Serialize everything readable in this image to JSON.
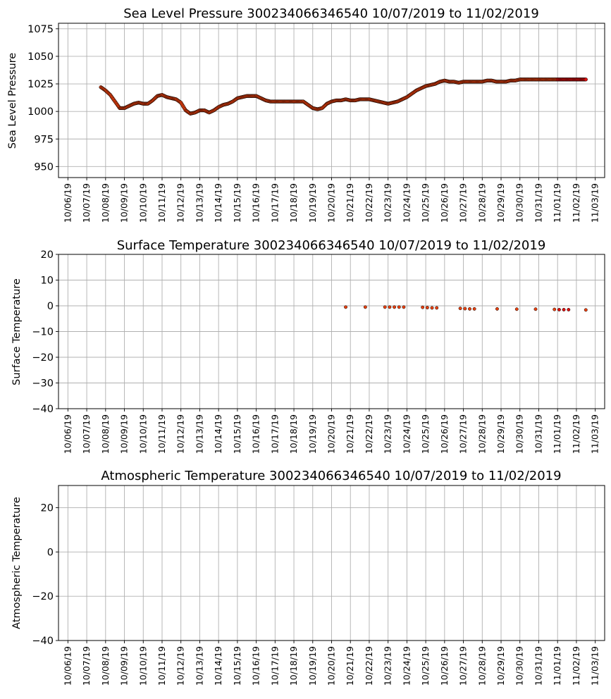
{
  "chart_data": [
    {
      "type": "scatter",
      "title": "Sea Level Pressure 300234066346540  10/07/2019 to 11/02/2019",
      "ylabel": "Sea Level Pressure",
      "xlabel": "",
      "ylim": [
        940,
        1080
      ],
      "yticks": [
        950,
        975,
        1000,
        1025,
        1050,
        1075
      ],
      "xlim": [
        "2019-10-05T12:00",
        "2019-11-03T12:00"
      ],
      "xtick_labels": [
        "10/06/19",
        "10/07/19",
        "10/08/19",
        "10/09/19",
        "10/10/19",
        "10/11/19",
        "10/12/19",
        "10/13/19",
        "10/14/19",
        "10/15/19",
        "10/16/19",
        "10/17/19",
        "10/18/19",
        "10/19/19",
        "10/20/19",
        "10/21/19",
        "10/22/19",
        "10/23/19",
        "10/24/19",
        "10/25/19",
        "10/26/19",
        "10/27/19",
        "10/28/19",
        "10/29/19",
        "10/30/19",
        "10/31/19",
        "11/01/19",
        "11/02/19",
        "11/03/19"
      ],
      "grid": true,
      "marker_color": "#e8400f",
      "marker_edge": "#000000",
      "late_color": "#e01010",
      "series": [
        {
          "x": [
            "2019-10-07T18:00",
            "2019-10-08T00:00",
            "2019-10-08T06:00",
            "2019-10-08T12:00",
            "2019-10-08T18:00",
            "2019-10-09T00:00",
            "2019-10-09T06:00",
            "2019-10-09T12:00",
            "2019-10-09T18:00",
            "2019-10-10T00:00",
            "2019-10-10T06:00",
            "2019-10-10T12:00",
            "2019-10-10T18:00",
            "2019-10-11T00:00",
            "2019-10-11T06:00",
            "2019-10-11T12:00",
            "2019-10-11T18:00",
            "2019-10-12T00:00",
            "2019-10-12T06:00",
            "2019-10-12T12:00",
            "2019-10-12T18:00",
            "2019-10-13T00:00",
            "2019-10-13T06:00",
            "2019-10-13T12:00",
            "2019-10-13T18:00",
            "2019-10-14T00:00",
            "2019-10-14T06:00",
            "2019-10-14T12:00",
            "2019-10-14T18:00",
            "2019-10-15T00:00",
            "2019-10-15T06:00",
            "2019-10-15T12:00",
            "2019-10-15T18:00",
            "2019-10-16T00:00",
            "2019-10-16T06:00",
            "2019-10-16T12:00",
            "2019-10-16T18:00",
            "2019-10-17T00:00",
            "2019-10-17T06:00",
            "2019-10-17T12:00",
            "2019-10-17T18:00",
            "2019-10-18T00:00",
            "2019-10-18T06:00",
            "2019-10-18T12:00",
            "2019-10-18T18:00",
            "2019-10-19T00:00",
            "2019-10-19T06:00",
            "2019-10-19T12:00",
            "2019-10-19T18:00",
            "2019-10-20T00:00",
            "2019-10-20T06:00",
            "2019-10-20T12:00",
            "2019-10-20T18:00",
            "2019-10-21T00:00",
            "2019-10-21T06:00",
            "2019-10-21T12:00",
            "2019-10-21T18:00",
            "2019-10-22T00:00",
            "2019-10-22T06:00",
            "2019-10-22T12:00",
            "2019-10-22T18:00",
            "2019-10-23T00:00",
            "2019-10-23T06:00",
            "2019-10-23T12:00",
            "2019-10-23T18:00",
            "2019-10-24T00:00",
            "2019-10-24T06:00",
            "2019-10-24T12:00",
            "2019-10-24T18:00",
            "2019-10-25T00:00",
            "2019-10-25T06:00",
            "2019-10-25T12:00",
            "2019-10-25T18:00",
            "2019-10-26T00:00",
            "2019-10-26T06:00",
            "2019-10-26T12:00",
            "2019-10-26T18:00",
            "2019-10-27T00:00",
            "2019-10-27T06:00",
            "2019-10-27T12:00",
            "2019-10-27T18:00",
            "2019-10-28T00:00",
            "2019-10-28T06:00",
            "2019-10-28T12:00",
            "2019-10-28T18:00",
            "2019-10-29T00:00",
            "2019-10-29T06:00",
            "2019-10-29T12:00",
            "2019-10-29T18:00",
            "2019-10-30T00:00",
            "2019-10-30T06:00",
            "2019-10-30T12:00",
            "2019-10-30T18:00",
            "2019-10-31T00:00",
            "2019-10-31T06:00",
            "2019-10-31T12:00",
            "2019-10-31T18:00",
            "2019-11-01T00:00",
            "2019-11-01T06:00",
            "2019-11-01T12:00",
            "2019-11-01T18:00",
            "2019-11-02T00:00",
            "2019-11-02T06:00",
            "2019-11-02T12:00"
          ],
          "y": [
            1022,
            1019,
            1015,
            1009,
            1003,
            1003,
            1005,
            1007,
            1008,
            1007,
            1007,
            1010,
            1014,
            1015,
            1013,
            1012,
            1011,
            1008,
            1001,
            998,
            999,
            1001,
            1001,
            999,
            1001,
            1004,
            1006,
            1007,
            1009,
            1012,
            1013,
            1014,
            1014,
            1014,
            1012,
            1010,
            1009,
            1009,
            1009,
            1009,
            1009,
            1009,
            1009,
            1009,
            1006,
            1003,
            1002,
            1003,
            1007,
            1009,
            1010,
            1010,
            1011,
            1010,
            1010,
            1011,
            1011,
            1011,
            1010,
            1009,
            1008,
            1007,
            1008,
            1009,
            1011,
            1013,
            1016,
            1019,
            1021,
            1023,
            1024,
            1025,
            1027,
            1028,
            1027,
            1027,
            1026,
            1027,
            1027,
            1027,
            1027,
            1027,
            1028,
            1028,
            1027,
            1027,
            1027,
            1028,
            1028,
            1029,
            1029,
            1029,
            1029,
            1029,
            1029,
            1029,
            1029,
            1029,
            1029,
            1029,
            1029,
            1029,
            1029,
            1029
          ]
        }
      ]
    },
    {
      "type": "scatter",
      "title": "Surface Temperature 300234066346540  10/07/2019 to 11/02/2019",
      "ylabel": "Surface Temperature",
      "xlabel": "",
      "ylim": [
        -40,
        20
      ],
      "yticks": [
        -40,
        -30,
        -20,
        -10,
        0,
        10,
        20
      ],
      "xlim": [
        "2019-10-05T12:00",
        "2019-11-03T12:00"
      ],
      "xtick_labels": [
        "10/06/19",
        "10/07/19",
        "10/08/19",
        "10/09/19",
        "10/10/19",
        "10/11/19",
        "10/12/19",
        "10/13/19",
        "10/14/19",
        "10/15/19",
        "10/16/19",
        "10/17/19",
        "10/18/19",
        "10/19/19",
        "10/20/19",
        "10/21/19",
        "10/22/19",
        "10/23/19",
        "10/24/19",
        "10/25/19",
        "10/26/19",
        "10/27/19",
        "10/28/19",
        "10/29/19",
        "10/30/19",
        "10/31/19",
        "11/01/19",
        "11/02/19",
        "11/03/19"
      ],
      "grid": true,
      "series": [
        {
          "x": [
            "2019-10-20T18:00",
            "2019-10-21T19:00",
            "2019-10-22T20:00",
            "2019-10-23T02:00",
            "2019-10-23T08:00",
            "2019-10-23T14:00",
            "2019-10-23T20:00",
            "2019-10-24T20:00",
            "2019-10-25T02:00",
            "2019-10-25T08:00",
            "2019-10-25T14:00",
            "2019-10-26T20:00",
            "2019-10-27T02:00",
            "2019-10-27T08:00",
            "2019-10-27T14:00",
            "2019-10-28T19:00",
            "2019-10-29T20:00",
            "2019-10-30T20:00",
            "2019-10-31T20:00",
            "2019-11-01T02:00",
            "2019-11-01T08:00",
            "2019-11-01T14:00",
            "2019-11-02T12:00"
          ],
          "y": [
            -0.5,
            -0.5,
            -0.5,
            -0.5,
            -0.5,
            -0.5,
            -0.5,
            -0.6,
            -0.7,
            -0.8,
            -0.8,
            -1.0,
            -1.1,
            -1.2,
            -1.2,
            -1.2,
            -1.3,
            -1.3,
            -1.4,
            -1.5,
            -1.5,
            -1.5,
            -1.6
          ]
        }
      ]
    },
    {
      "type": "scatter",
      "title": "Atmospheric Temperature 300234066346540  10/07/2019 to 11/02/2019",
      "ylabel": "Atmospheric Temperature",
      "xlabel": "",
      "ylim": [
        -40,
        30
      ],
      "yticks": [
        -40,
        -20,
        0,
        20
      ],
      "xlim": [
        "2019-10-05T12:00",
        "2019-11-03T12:00"
      ],
      "xtick_labels": [
        "10/06/19",
        "10/07/19",
        "10/08/19",
        "10/09/19",
        "10/10/19",
        "10/11/19",
        "10/12/19",
        "10/13/19",
        "10/14/19",
        "10/15/19",
        "10/16/19",
        "10/17/19",
        "10/18/19",
        "10/19/19",
        "10/20/19",
        "10/21/19",
        "10/22/19",
        "10/23/19",
        "10/24/19",
        "10/25/19",
        "10/26/19",
        "10/27/19",
        "10/28/19",
        "10/29/19",
        "10/30/19",
        "10/31/19",
        "11/01/19",
        "11/02/19",
        "11/03/19"
      ],
      "grid": true,
      "series": []
    }
  ]
}
